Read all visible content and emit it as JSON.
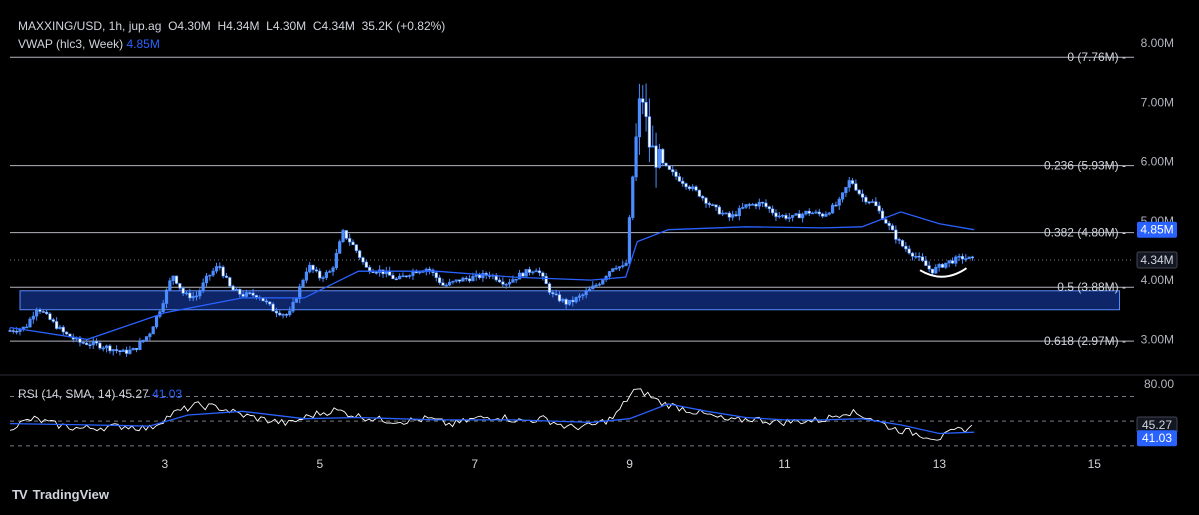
{
  "header": {
    "symbol": "MAXXING/USD, 1h, jup.ag",
    "o_label": "O",
    "o": "4.30M",
    "h_label": "H",
    "h": "4.34M",
    "l_label": "L",
    "l": "4.30M",
    "c_label": "C",
    "c": "4.34M",
    "volume": "35.2K",
    "change": "(+0.82%)",
    "vwap_label": "VWAP (hlc3, Week)",
    "vwap_value": "4.85M",
    "rsi_label": "RSI (14, SMA, 14)",
    "rsi_value": "45.27",
    "rsi_sma_value": "41.03"
  },
  "brand": {
    "logo": "TV",
    "name": "TradingView"
  },
  "colors": {
    "background": "#000000",
    "candle": "#4c8dff",
    "vwap": "#2962ff",
    "rsi": "#ffffff",
    "rsi_sma": "#2962ff",
    "fib_line": "#b2b5be",
    "support_zone": "#1e53e5"
  },
  "chart_data": [
    {
      "type": "candlestick",
      "title": "MAXXING/USD, 1h, jup.ag",
      "x_ticks": [
        "3",
        "5",
        "7",
        "9",
        "11",
        "13",
        "15"
      ],
      "x_range": [
        1.0,
        15.5
      ],
      "y_ticks": [
        "3.00M",
        "4.00M",
        "5.00M",
        "6.00M",
        "7.00M",
        "8.00M"
      ],
      "ylim": [
        2.45,
        8.05
      ],
      "price_label": "4.34M",
      "vwap_label": "4.85M",
      "fib_levels": [
        {
          "label": "0 (7.76M)",
          "value": 7.76
        },
        {
          "label": "0.236 (5.93M)",
          "value": 5.93
        },
        {
          "label": "0.382 (4.80M)",
          "value": 4.8
        },
        {
          "label": "0.5 (3.88M)",
          "value": 3.88
        },
        {
          "label": "0.618 (2.97M)",
          "value": 2.97
        }
      ],
      "support_zone": {
        "from_x": 1.0,
        "to_x": 15.3,
        "low": 3.5,
        "high": 3.82
      },
      "price_path": [
        [
          1.0,
          3.15
        ],
        [
          1.2,
          3.2
        ],
        [
          1.35,
          3.55
        ],
        [
          1.5,
          3.35
        ],
        [
          1.7,
          3.1
        ],
        [
          1.9,
          2.95
        ],
        [
          2.1,
          2.92
        ],
        [
          2.3,
          2.85
        ],
        [
          2.45,
          2.78
        ],
        [
          2.6,
          2.82
        ],
        [
          2.8,
          3.1
        ],
        [
          2.95,
          3.55
        ],
        [
          3.1,
          4.1
        ],
        [
          3.25,
          3.75
        ],
        [
          3.4,
          3.72
        ],
        [
          3.55,
          4.05
        ],
        [
          3.7,
          4.25
        ],
        [
          3.85,
          3.85
        ],
        [
          4.0,
          3.75
        ],
        [
          4.2,
          3.75
        ],
        [
          4.4,
          3.5
        ],
        [
          4.6,
          3.4
        ],
        [
          4.75,
          3.9
        ],
        [
          4.85,
          4.25
        ],
        [
          5.0,
          4.05
        ],
        [
          5.15,
          4.15
        ],
        [
          5.3,
          4.8
        ],
        [
          5.45,
          4.55
        ],
        [
          5.6,
          4.2
        ],
        [
          5.8,
          4.15
        ],
        [
          6.0,
          4.0
        ],
        [
          6.2,
          4.15
        ],
        [
          6.4,
          4.2
        ],
        [
          6.6,
          3.9
        ],
        [
          6.8,
          4.0
        ],
        [
          7.0,
          4.05
        ],
        [
          7.2,
          4.1
        ],
        [
          7.4,
          3.95
        ],
        [
          7.6,
          4.1
        ],
        [
          7.8,
          4.2
        ],
        [
          8.0,
          3.75
        ],
        [
          8.2,
          3.6
        ],
        [
          8.4,
          3.75
        ],
        [
          8.6,
          3.95
        ],
        [
          8.8,
          4.25
        ],
        [
          8.95,
          4.2
        ],
        [
          9.05,
          5.9
        ],
        [
          9.15,
          7.25
        ],
        [
          9.25,
          6.3
        ],
        [
          9.35,
          6.05
        ],
        [
          9.5,
          5.85
        ],
        [
          9.7,
          5.65
        ],
        [
          9.9,
          5.45
        ],
        [
          10.1,
          5.2
        ],
        [
          10.3,
          5.05
        ],
        [
          10.5,
          5.25
        ],
        [
          10.7,
          5.3
        ],
        [
          10.9,
          5.1
        ],
        [
          11.1,
          5.05
        ],
        [
          11.3,
          5.15
        ],
        [
          11.5,
          5.1
        ],
        [
          11.7,
          5.3
        ],
        [
          11.85,
          5.7
        ],
        [
          12.0,
          5.4
        ],
        [
          12.15,
          5.3
        ],
        [
          12.3,
          5.0
        ],
        [
          12.5,
          4.6
        ],
        [
          12.7,
          4.4
        ],
        [
          12.9,
          4.15
        ],
        [
          13.1,
          4.3
        ],
        [
          13.3,
          4.38
        ],
        [
          13.45,
          4.34
        ]
      ],
      "vwap_path": [
        [
          1.0,
          3.2
        ],
        [
          2.0,
          3.0
        ],
        [
          3.0,
          3.45
        ],
        [
          4.0,
          3.7
        ],
        [
          4.8,
          3.7
        ],
        [
          5.5,
          4.15
        ],
        [
          6.5,
          4.15
        ],
        [
          7.5,
          4.05
        ],
        [
          8.5,
          4.0
        ],
        [
          8.95,
          4.05
        ],
        [
          9.1,
          4.65
        ],
        [
          9.5,
          4.85
        ],
        [
          10.5,
          4.9
        ],
        [
          11.5,
          4.88
        ],
        [
          12.0,
          4.9
        ],
        [
          12.5,
          5.15
        ],
        [
          13.0,
          4.95
        ],
        [
          13.45,
          4.85
        ]
      ]
    },
    {
      "type": "line",
      "title": "RSI (14, SMA, 14)",
      "y_ticks": [
        "80.00"
      ],
      "ylim": [
        25,
        85
      ],
      "guide_lines": [
        70,
        50,
        30
      ],
      "value_labels": [
        "45.27",
        "41.03"
      ],
      "series": [
        {
          "name": "RSI",
          "points": [
            [
              1.0,
              45
            ],
            [
              1.3,
              52
            ],
            [
              1.6,
              47
            ],
            [
              1.9,
              44
            ],
            [
              2.2,
              45
            ],
            [
              2.5,
              46
            ],
            [
              2.8,
              44
            ],
            [
              3.1,
              56
            ],
            [
              3.4,
              63
            ],
            [
              3.7,
              61
            ],
            [
              4.0,
              55
            ],
            [
              4.3,
              51
            ],
            [
              4.6,
              48
            ],
            [
              4.9,
              55
            ],
            [
              5.2,
              59
            ],
            [
              5.5,
              54
            ],
            [
              5.8,
              51
            ],
            [
              6.1,
              50
            ],
            [
              6.4,
              52
            ],
            [
              6.7,
              47
            ],
            [
              7.0,
              52
            ],
            [
              7.3,
              54
            ],
            [
              7.6,
              50
            ],
            [
              7.9,
              52
            ],
            [
              8.2,
              45
            ],
            [
              8.5,
              46
            ],
            [
              8.8,
              53
            ],
            [
              9.05,
              75
            ],
            [
              9.2,
              73
            ],
            [
              9.4,
              65
            ],
            [
              9.7,
              60
            ],
            [
              10.0,
              55
            ],
            [
              10.3,
              50
            ],
            [
              10.6,
              52
            ],
            [
              10.9,
              49
            ],
            [
              11.2,
              50
            ],
            [
              11.5,
              51
            ],
            [
              11.8,
              58
            ],
            [
              12.1,
              53
            ],
            [
              12.4,
              44
            ],
            [
              12.7,
              40
            ],
            [
              13.0,
              36
            ],
            [
              13.2,
              42
            ],
            [
              13.45,
              45.27
            ]
          ]
        },
        {
          "name": "RSI-based MA",
          "points": [
            [
              1.0,
              48
            ],
            [
              2.0,
              47
            ],
            [
              2.8,
              46
            ],
            [
              3.3,
              55
            ],
            [
              4.0,
              58
            ],
            [
              4.8,
              52
            ],
            [
              5.5,
              53
            ],
            [
              6.5,
              51
            ],
            [
              7.5,
              51
            ],
            [
              8.5,
              49
            ],
            [
              9.0,
              52
            ],
            [
              9.5,
              64
            ],
            [
              10.0,
              58
            ],
            [
              10.5,
              53
            ],
            [
              11.0,
              51
            ],
            [
              11.5,
              51
            ],
            [
              12.0,
              52
            ],
            [
              12.5,
              47
            ],
            [
              13.0,
              40
            ],
            [
              13.45,
              41.03
            ]
          ]
        }
      ]
    }
  ]
}
